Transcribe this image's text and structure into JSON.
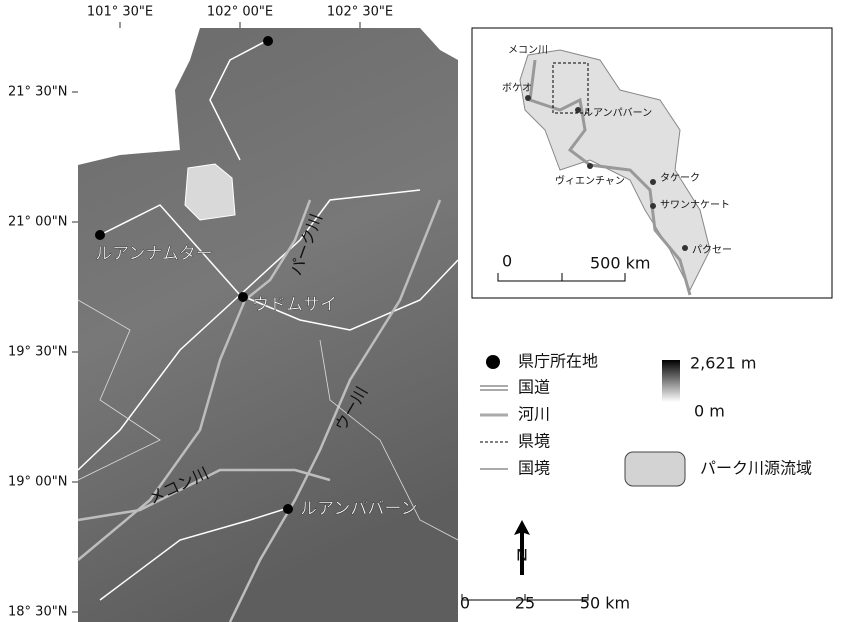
{
  "map": {
    "lon_labels": [
      "101° 30\"E",
      "102° 00\"E",
      "102° 30\"E"
    ],
    "lat_labels": [
      "21° 30\"N",
      "21° 00\"N",
      "19° 30\"N",
      "19° 00\"N",
      "18° 30\"N"
    ],
    "places": [
      "ルアンナムター",
      "ウドムサイ",
      "ルアンパバーン"
    ],
    "rivers": [
      "パーク川",
      "ウー川",
      "メコン川"
    ],
    "inset": {
      "labels": [
        "メコン川",
        "ボケオ",
        "ルアンパバーン",
        "ヴィエンチャン",
        "タケーク",
        "サワンナケート",
        "パクセー"
      ],
      "scale": [
        "0",
        "500 km"
      ]
    },
    "legend": {
      "items": [
        "県庁所在地",
        "国道",
        "河川",
        "県境",
        "国境"
      ],
      "elevation": [
        "2,621 m",
        "0 m"
      ],
      "basin": "パーク川源流域"
    },
    "scale": [
      "0",
      "25",
      "50 km"
    ],
    "north": "N"
  }
}
